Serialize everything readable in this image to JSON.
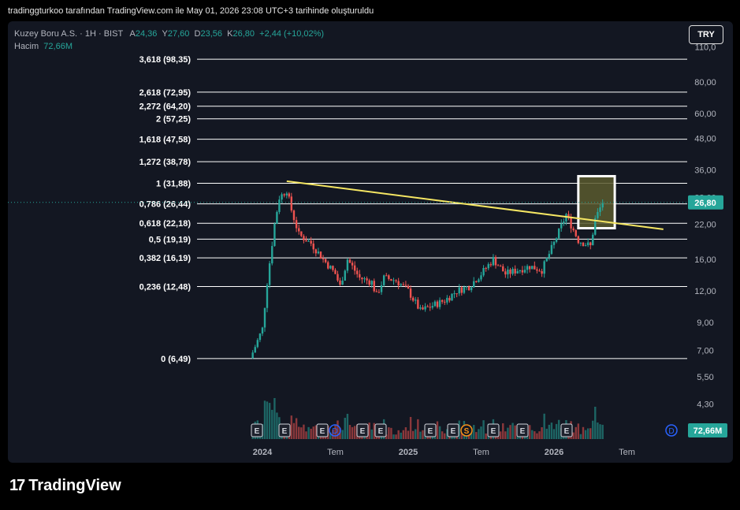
{
  "header_text": "tradinggturkoo tarafından TradingView.com ile May 01, 2026 23:08 UTC+3 tarihinde oluşturuldu",
  "legend": {
    "symbol": "Kuzey Boru A.S. · 1H · BIST",
    "o_label": "A",
    "o_value": "24,36",
    "h_label": "Y",
    "h_value": "27,60",
    "l_label": "D",
    "l_value": "23,56",
    "c_label": "K",
    "c_value": "26,80",
    "change": "+2,44 (+10,02%)",
    "volume_label": "Hacim",
    "volume_value": "72,66M"
  },
  "currency_button": "TRY",
  "footer_brand": "TradingView",
  "colors": {
    "background": "#131722",
    "up": "#26a69a",
    "down": "#ef5350",
    "trendline": "#f5e663",
    "fib_line": "#ffffff",
    "highlight_fill": "#5b5a2e"
  },
  "chart_data": {
    "type": "candlestick",
    "scale": "log",
    "price_axis_labels": [
      "110,0",
      "80,00",
      "60,00",
      "48,00",
      "36,00",
      "28,00",
      "22,00",
      "16,00",
      "12,00",
      "9,00",
      "7,00",
      "5,50",
      "4,30"
    ],
    "price_axis_values": [
      110,
      80,
      60,
      48,
      36,
      28,
      22,
      16,
      12,
      9,
      7,
      5.5,
      4.3
    ],
    "time_axis_labels": [
      "2024",
      "Tem",
      "2025",
      "Tem",
      "2026",
      "Tem"
    ],
    "last_price_label": "26,80",
    "last_price": 26.8,
    "volume_label": "72,66M",
    "fibonacci_levels": [
      {
        "label": "3,618 (98,35)",
        "price": 98.35
      },
      {
        "label": "2,618 (72,95)",
        "price": 72.95
      },
      {
        "label": "2,272 (64,20)",
        "price": 64.2
      },
      {
        "label": "2 (57,25)",
        "price": 57.25
      },
      {
        "label": "1,618 (47,58)",
        "price": 47.58
      },
      {
        "label": "1,272 (38,78)",
        "price": 38.78
      },
      {
        "label": "1 (31,88)",
        "price": 31.88
      },
      {
        "label": "0,786 (26,44)",
        "price": 26.44
      },
      {
        "label": "0,618 (22,18)",
        "price": 22.18
      },
      {
        "label": "0,5 (19,19)",
        "price": 19.19
      },
      {
        "label": "0,382 (16,19)",
        "price": 16.19
      },
      {
        "label": "0,236 (12,48)",
        "price": 12.48
      },
      {
        "label": "0 (6,49)",
        "price": 6.49
      }
    ],
    "trendline": {
      "from": {
        "date": "2024-03",
        "price": 32.5
      },
      "to": {
        "date": "2026-10",
        "price": 21.0
      }
    },
    "highlight_box": {
      "date_from": "2026-03",
      "date_to": "2026-06",
      "price_low": 21.2,
      "price_high": 34.0
    },
    "event_markers": [
      "E",
      "E",
      "E",
      "D",
      "E",
      "E",
      "E",
      "E",
      "S",
      "E",
      "E",
      "E",
      "D"
    ],
    "price_path": [
      {
        "date": "2023-12",
        "price": 6.5
      },
      {
        "date": "2024-01",
        "price": 8.5
      },
      {
        "date": "2024-01",
        "price": 13.0
      },
      {
        "date": "2024-02",
        "price": 22.0
      },
      {
        "date": "2024-02",
        "price": 28.0
      },
      {
        "date": "2024-03",
        "price": 30.0
      },
      {
        "date": "2024-03",
        "price": 25.0
      },
      {
        "date": "2024-04",
        "price": 20.0
      },
      {
        "date": "2024-05",
        "price": 18.5
      },
      {
        "date": "2024-06",
        "price": 16.0
      },
      {
        "date": "2024-07",
        "price": 14.0
      },
      {
        "date": "2024-07",
        "price": 12.5
      },
      {
        "date": "2024-08",
        "price": 16.0
      },
      {
        "date": "2024-09",
        "price": 13.5
      },
      {
        "date": "2024-10",
        "price": 13.0
      },
      {
        "date": "2024-10",
        "price": 11.5
      },
      {
        "date": "2024-11",
        "price": 13.5
      },
      {
        "date": "2024-12",
        "price": 13.2
      },
      {
        "date": "2025-01",
        "price": 12.0
      },
      {
        "date": "2025-02",
        "price": 10.0
      },
      {
        "date": "2025-03",
        "price": 10.5
      },
      {
        "date": "2025-04",
        "price": 11.0
      },
      {
        "date": "2025-05",
        "price": 12.0
      },
      {
        "date": "2025-06",
        "price": 12.5
      },
      {
        "date": "2025-07",
        "price": 14.0
      },
      {
        "date": "2025-08",
        "price": 16.0
      },
      {
        "date": "2025-09",
        "price": 14.0
      },
      {
        "date": "2025-10",
        "price": 14.5
      },
      {
        "date": "2025-11",
        "price": 15.0
      },
      {
        "date": "2025-12",
        "price": 14.5
      },
      {
        "date": "2026-01",
        "price": 18.5
      },
      {
        "date": "2026-02",
        "price": 24.0
      },
      {
        "date": "2026-03",
        "price": 19.0
      },
      {
        "date": "2026-04",
        "price": 18.0
      },
      {
        "date": "2026-04",
        "price": 23.0
      },
      {
        "date": "2026-05",
        "price": 26.8
      }
    ]
  }
}
